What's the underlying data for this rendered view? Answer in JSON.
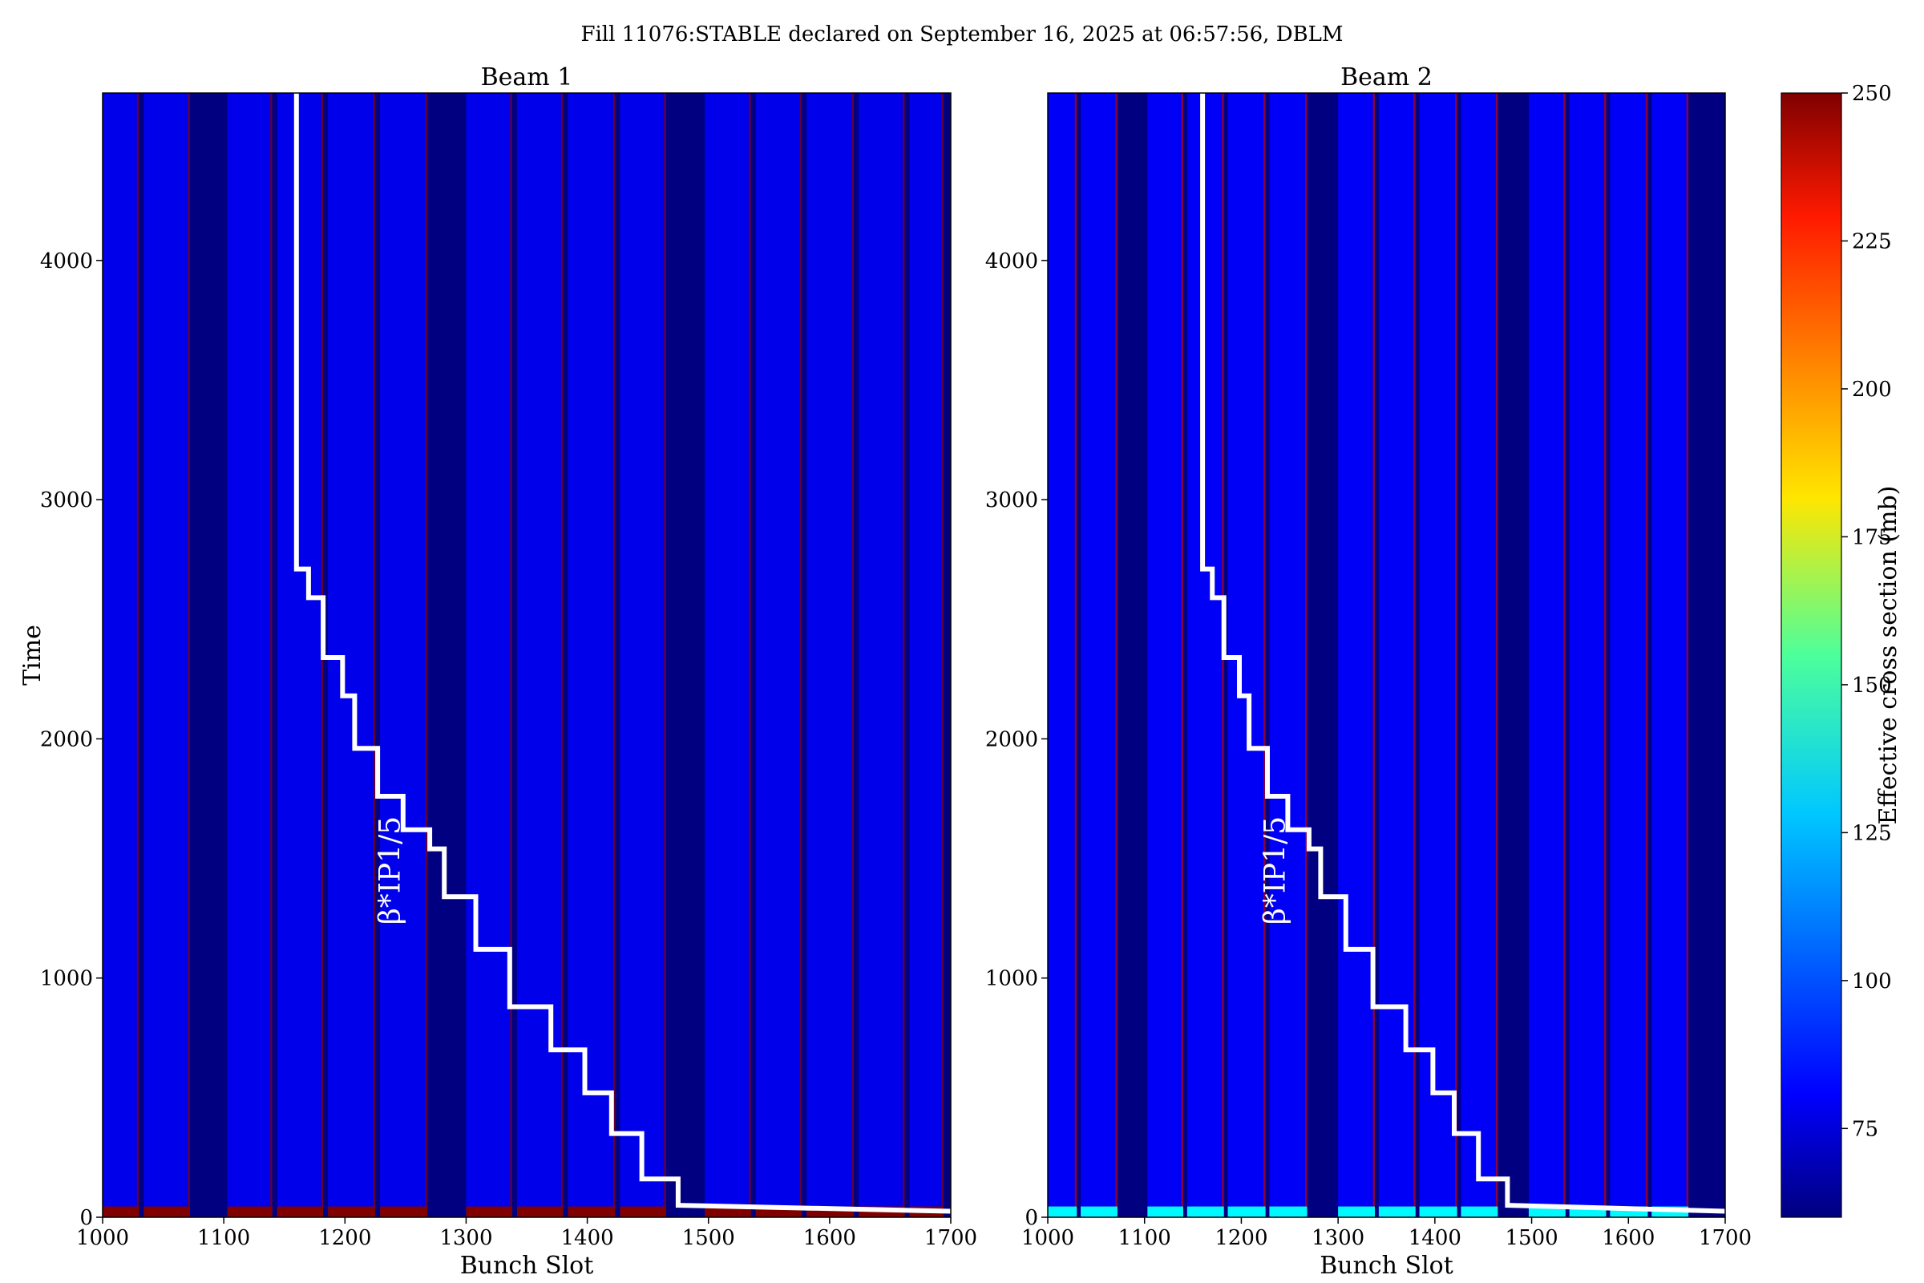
{
  "figure": {
    "suptitle": "Fill 11076:STABLE declared on September 16, 2025 at 06:57:56, DBLM"
  },
  "colorbar": {
    "label": "Effective cross section (mb)",
    "ticks": [
      75,
      100,
      125,
      150,
      175,
      200,
      225,
      250
    ],
    "range": [
      60,
      250
    ],
    "colormap": "jet"
  },
  "beta_label": "β*IP1/5",
  "chart_data": [
    {
      "type": "heatmap",
      "title": "Beam 1",
      "xlabel": "Bunch Slot",
      "ylabel": "Time",
      "xlim": [
        1000,
        1700
      ],
      "ylim": [
        0,
        4700
      ],
      "xticks": [
        1000,
        1100,
        1200,
        1300,
        1400,
        1500,
        1600,
        1700
      ],
      "yticks": [
        0,
        1000,
        2000,
        3000,
        4000
      ],
      "background_value": 60,
      "filled_bands": [
        [
          1000,
          1030
        ],
        [
          1034,
          1072
        ],
        [
          1103,
          1140
        ],
        [
          1144,
          1182
        ],
        [
          1186,
          1225
        ],
        [
          1229,
          1268
        ],
        [
          1300,
          1338
        ],
        [
          1342,
          1380
        ],
        [
          1384,
          1423
        ],
        [
          1427,
          1465
        ],
        [
          1497,
          1535
        ],
        [
          1539,
          1577
        ],
        [
          1581,
          1620
        ],
        [
          1624,
          1662
        ],
        [
          1666,
          1694
        ]
      ],
      "band_value": 80,
      "edge_value": 250,
      "start_value": 250,
      "beta_step_line": [
        [
          1160,
          4700
        ],
        [
          1160,
          2710
        ],
        [
          1170,
          2710
        ],
        [
          1170,
          2590
        ],
        [
          1182,
          2590
        ],
        [
          1182,
          2340
        ],
        [
          1198,
          2340
        ],
        [
          1198,
          2180
        ],
        [
          1208,
          2180
        ],
        [
          1208,
          1960
        ],
        [
          1227,
          1960
        ],
        [
          1227,
          1760
        ],
        [
          1248,
          1760
        ],
        [
          1248,
          1620
        ],
        [
          1270,
          1620
        ],
        [
          1270,
          1540
        ],
        [
          1282,
          1540
        ],
        [
          1282,
          1340
        ],
        [
          1308,
          1340
        ],
        [
          1308,
          1120
        ],
        [
          1336,
          1120
        ],
        [
          1336,
          880
        ],
        [
          1370,
          880
        ],
        [
          1370,
          700
        ],
        [
          1398,
          700
        ],
        [
          1398,
          520
        ],
        [
          1420,
          520
        ],
        [
          1420,
          350
        ],
        [
          1445,
          350
        ],
        [
          1445,
          160
        ],
        [
          1475,
          160
        ],
        [
          1475,
          50
        ],
        [
          1700,
          25
        ]
      ]
    },
    {
      "type": "heatmap",
      "title": "Beam 2",
      "xlabel": "Bunch Slot",
      "ylabel": "",
      "xlim": [
        1000,
        1700
      ],
      "ylim": [
        0,
        4700
      ],
      "xticks": [
        1000,
        1100,
        1200,
        1300,
        1400,
        1500,
        1600,
        1700
      ],
      "yticks": [
        0,
        1000,
        2000,
        3000,
        4000
      ],
      "background_value": 60,
      "filled_bands": [
        [
          1000,
          1030
        ],
        [
          1034,
          1072
        ],
        [
          1103,
          1140
        ],
        [
          1144,
          1182
        ],
        [
          1186,
          1225
        ],
        [
          1229,
          1268
        ],
        [
          1300,
          1338
        ],
        [
          1342,
          1380
        ],
        [
          1384,
          1423
        ],
        [
          1427,
          1465
        ],
        [
          1497,
          1535
        ],
        [
          1539,
          1577
        ],
        [
          1581,
          1620
        ],
        [
          1624,
          1662
        ]
      ],
      "band_value": 82,
      "edge_value": 240,
      "start_value": 130,
      "beta_step_line": [
        [
          1160,
          4700
        ],
        [
          1160,
          2710
        ],
        [
          1170,
          2710
        ],
        [
          1170,
          2590
        ],
        [
          1182,
          2590
        ],
        [
          1182,
          2340
        ],
        [
          1198,
          2340
        ],
        [
          1198,
          2180
        ],
        [
          1208,
          2180
        ],
        [
          1208,
          1960
        ],
        [
          1227,
          1960
        ],
        [
          1227,
          1760
        ],
        [
          1248,
          1760
        ],
        [
          1248,
          1620
        ],
        [
          1270,
          1620
        ],
        [
          1270,
          1540
        ],
        [
          1282,
          1540
        ],
        [
          1282,
          1340
        ],
        [
          1308,
          1340
        ],
        [
          1308,
          1120
        ],
        [
          1336,
          1120
        ],
        [
          1336,
          880
        ],
        [
          1370,
          880
        ],
        [
          1370,
          700
        ],
        [
          1398,
          700
        ],
        [
          1398,
          520
        ],
        [
          1420,
          520
        ],
        [
          1420,
          350
        ],
        [
          1445,
          350
        ],
        [
          1445,
          160
        ],
        [
          1475,
          160
        ],
        [
          1475,
          50
        ],
        [
          1700,
          25
        ]
      ]
    }
  ]
}
